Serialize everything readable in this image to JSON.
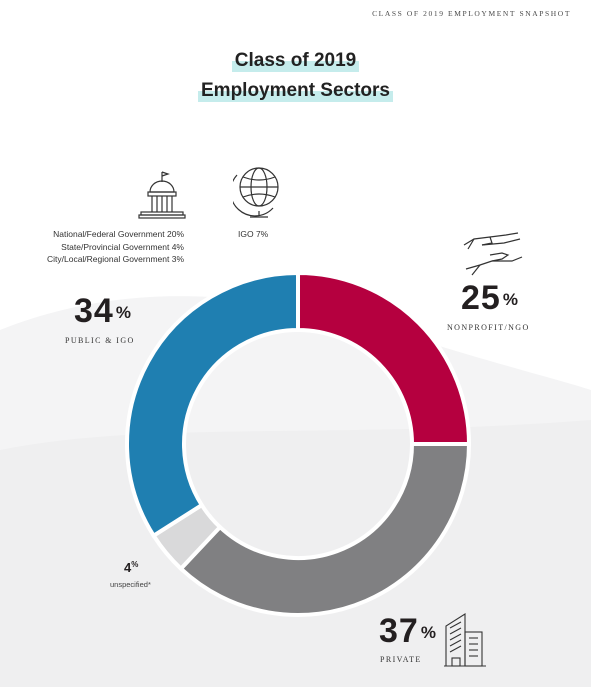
{
  "header": {
    "label": "CLASS OF 2019 EMPLOYMENT SNAPSHOT"
  },
  "title": {
    "line1": "Class of 2019",
    "line2": "Employment Sectors"
  },
  "public": {
    "details": [
      "National/Federal Government 20%",
      "State/Provincial Government 4%",
      "City/Local/Regional Government 3%"
    ],
    "igo_detail": "IGO 7%",
    "pct_number": "34",
    "pct_sign": "%",
    "label": "PUBLIC & IGO"
  },
  "nonprofit": {
    "pct_number": "25",
    "pct_sign": "%",
    "label": "NONPROFIT/NGO"
  },
  "private": {
    "pct_number": "37",
    "pct_sign": "%",
    "label": "PRIVATE"
  },
  "unspecified": {
    "pct_number": "4",
    "pct_sign": "%",
    "label": "unspecified*"
  },
  "colors": {
    "nonprofit": "#b5003f",
    "private": "#808082",
    "unspecified": "#d9d9da",
    "public": "#1f7fb1",
    "title_highlight": "#c5ecec"
  },
  "icons": [
    "capitol-building-icon",
    "globe-icon",
    "helping-hands-icon",
    "office-building-icon"
  ],
  "chart_data": {
    "type": "pie",
    "donut": true,
    "categories": [
      "Nonprofit/NGO",
      "Private",
      "Unspecified",
      "Public & IGO"
    ],
    "values": [
      25,
      37,
      4,
      34
    ],
    "title": "Class of 2019 Employment Sectors",
    "public_breakdown": [
      {
        "label": "National/Federal Government",
        "value": 20
      },
      {
        "label": "State/Provincial Government",
        "value": 4
      },
      {
        "label": "City/Local/Regional Government",
        "value": 3
      },
      {
        "label": "IGO",
        "value": 7
      }
    ]
  }
}
